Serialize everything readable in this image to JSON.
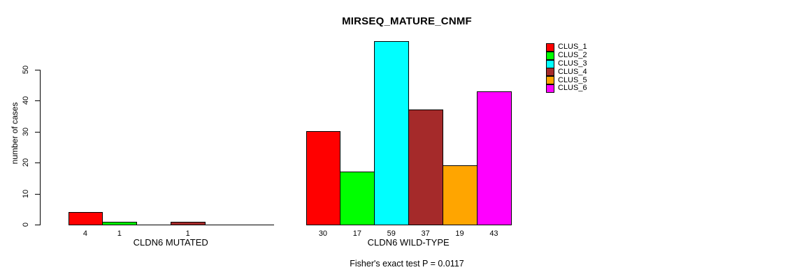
{
  "chart_data": {
    "type": "bar",
    "title": "MIRSEQ_MATURE_CNMF",
    "ylabel": "number of cases",
    "footnote": "Fisher's exact test P = 0.0117",
    "yticks": [
      0,
      10,
      20,
      30,
      40,
      50
    ],
    "ylim": [
      0,
      59
    ],
    "grid": false,
    "legend_position": "right",
    "categories": [
      "CLDN6 MUTATED",
      "CLDN6 WILD-TYPE"
    ],
    "series": [
      {
        "name": "CLUS_1",
        "color": "#FF0000",
        "values": [
          4,
          30
        ]
      },
      {
        "name": "CLUS_2",
        "color": "#00FF00",
        "values": [
          1,
          17
        ]
      },
      {
        "name": "CLUS_3",
        "color": "#00FFFF",
        "values": [
          0,
          59
        ]
      },
      {
        "name": "CLUS_4",
        "color": "#A52A2A",
        "values": [
          1,
          37
        ]
      },
      {
        "name": "CLUS_5",
        "color": "#FFA500",
        "values": [
          0,
          19
        ]
      },
      {
        "name": "CLUS_6",
        "color": "#FF00FF",
        "values": [
          0,
          43
        ]
      }
    ],
    "bar_value_labels": [
      [
        "4",
        "1",
        "",
        "1",
        "",
        ""
      ],
      [
        "30",
        "17",
        "59",
        "37",
        "19",
        "43"
      ]
    ]
  }
}
